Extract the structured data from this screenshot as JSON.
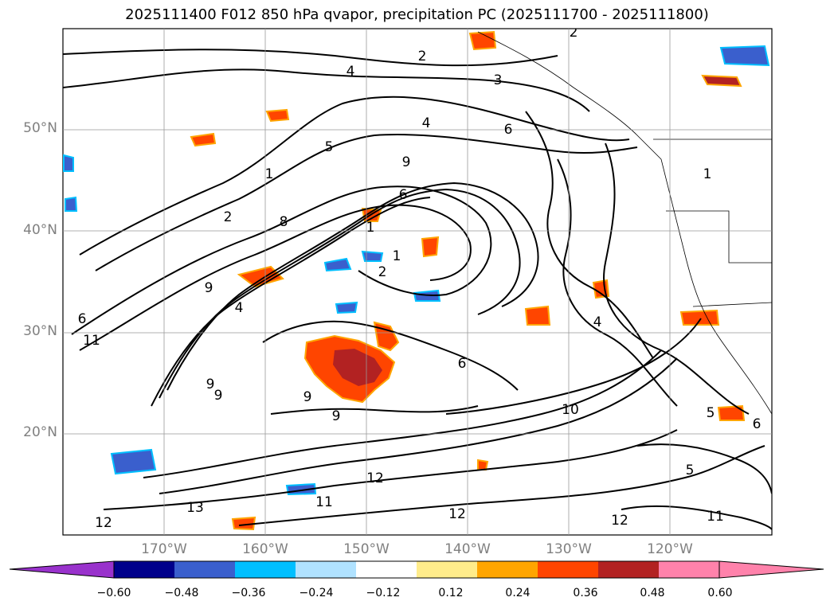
{
  "title": "2025111400 F012 850 hPa qvapor, precipitation PC (2025111700 - 2025111800)",
  "map": {
    "lat_labels": [
      "50°N",
      "40°N",
      "30°N",
      "20°N"
    ],
    "lon_labels": [
      "170°W",
      "160°W",
      "150°W",
      "140°W",
      "130°W",
      "120°W"
    ],
    "contour_labels": [
      "2",
      "2",
      "4",
      "3",
      "4",
      "6",
      "5",
      "9",
      "1",
      "2",
      "8",
      "6",
      "1",
      "1",
      "2",
      "4",
      "9",
      "6",
      "4",
      "11",
      "9",
      "9",
      "9",
      "9",
      "10",
      "12",
      "11",
      "12",
      "13",
      "12",
      "12",
      "11",
      "6",
      "5",
      "6",
      "5",
      "1"
    ]
  },
  "colorbar": {
    "ticks": [
      "−0.60",
      "−0.48",
      "−0.36",
      "−0.24",
      "−0.12",
      "0.12",
      "0.24",
      "0.36",
      "0.48",
      "0.60"
    ],
    "colors": [
      "#9932cc",
      "#00008b",
      "#3a5fcd",
      "#00bfff",
      "#b0e2ff",
      "#ffffff",
      "#ffec8b",
      "#ffa500",
      "#ff4500",
      "#b22222",
      "#ff82ab",
      "#ff82ab"
    ]
  }
}
